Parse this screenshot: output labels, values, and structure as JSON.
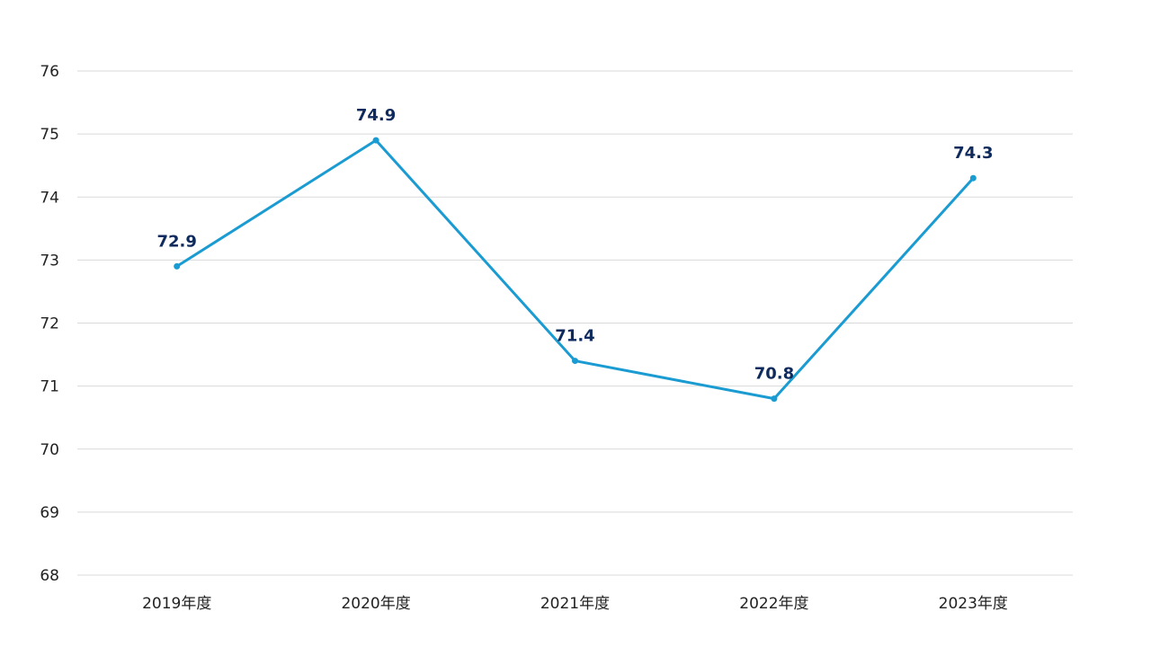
{
  "chart_data": {
    "type": "line",
    "title": "",
    "xlabel": "",
    "ylabel": "",
    "categories": [
      "2019年度",
      "2020年度",
      "2021年度",
      "2022年度",
      "2023年度"
    ],
    "series": [
      {
        "values": [
          72.9,
          74.9,
          71.4,
          70.8,
          74.3
        ],
        "data_labels": [
          "72.9",
          "74.9",
          "71.4",
          "70.8",
          "74.3"
        ]
      }
    ],
    "ylim": [
      68,
      76
    ],
    "yticks": [
      "68",
      "69",
      "70",
      "71",
      "72",
      "73",
      "74",
      "75",
      "76"
    ],
    "grid": true,
    "legend": "none",
    "colors": {
      "line": "#1a9bd1",
      "label": "#0f2a5c",
      "grid": "#d9d9d9"
    }
  }
}
